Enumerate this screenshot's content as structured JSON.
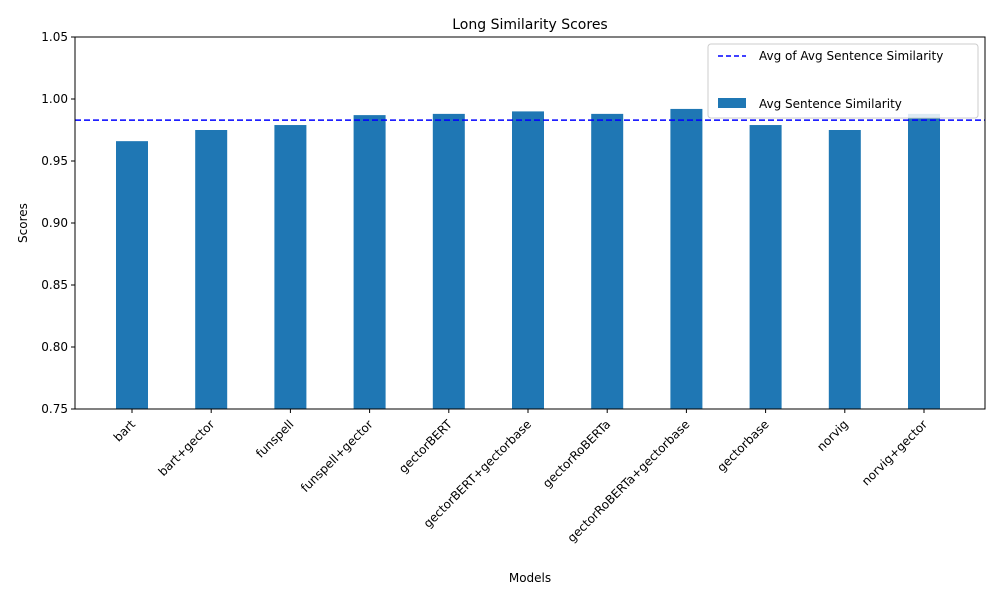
{
  "chart_data": {
    "type": "bar",
    "title": "Long Similarity Scores",
    "xlabel": "Models",
    "ylabel": "Scores",
    "categories": [
      "bart",
      "bart+gector",
      "funspell",
      "funspell+gector",
      "gectorBERT",
      "gectorBERT+gectorbase",
      "gectorRoBERTa",
      "gectorRoBERTa+gectorbase",
      "gectorbase",
      "norvig",
      "norvig+gector"
    ],
    "series": [
      {
        "name": "Avg Sentence Similarity",
        "values": [
          0.966,
          0.975,
          0.979,
          0.987,
          0.988,
          0.99,
          0.988,
          0.992,
          0.979,
          0.975,
          0.988
        ],
        "color": "#1f77b4"
      }
    ],
    "reference_line": {
      "name": "Avg of Avg Sentence Similarity",
      "value": 0.983,
      "color": "#0000ff",
      "style": "dashed"
    },
    "ylim": [
      0.75,
      1.05
    ],
    "yticks": [
      "0.75",
      "0.80",
      "0.85",
      "0.90",
      "0.95",
      "1.00",
      "1.05"
    ],
    "grid": false,
    "legend_position": "top-right"
  }
}
